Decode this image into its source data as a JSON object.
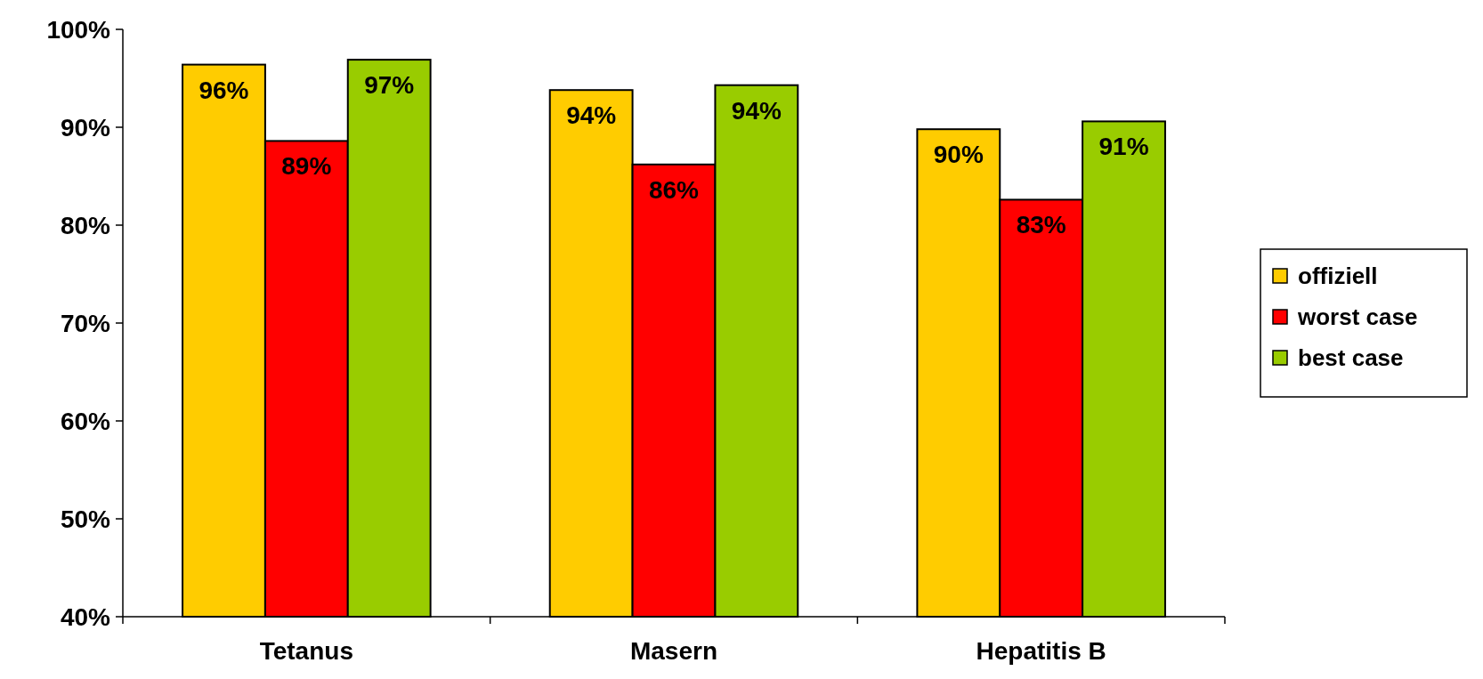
{
  "chart_data": {
    "type": "bar",
    "categories": [
      "Tetanus",
      "Masern",
      "Hepatitis B"
    ],
    "series": [
      {
        "name": "offiziell",
        "color": "#ffcc00",
        "values": [
          96.4,
          93.8,
          89.8
        ],
        "value_labels": [
          "96%",
          "94%",
          "90%"
        ]
      },
      {
        "name": "worst case",
        "color": "#ff0000",
        "values": [
          88.6,
          86.2,
          82.6
        ],
        "value_labels": [
          "89%",
          "86%",
          "83%"
        ]
      },
      {
        "name": "best case",
        "color": "#99cc00",
        "values": [
          96.9,
          94.3,
          90.6
        ],
        "value_labels": [
          "97%",
          "94%",
          "91%"
        ]
      }
    ],
    "ylim": [
      40,
      100
    ],
    "yticks": [
      {
        "value": 40,
        "label": "40%"
      },
      {
        "value": 50,
        "label": "50%"
      },
      {
        "value": 60,
        "label": "60%"
      },
      {
        "value": 70,
        "label": "70%"
      },
      {
        "value": 80,
        "label": "80%"
      },
      {
        "value": 90,
        "label": "90%"
      },
      {
        "value": 100,
        "label": "100%"
      }
    ],
    "legend": "right"
  }
}
